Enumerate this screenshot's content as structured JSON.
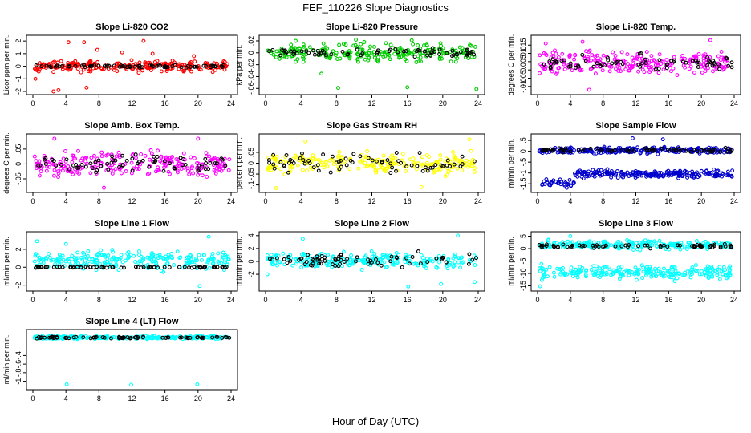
{
  "figure": {
    "title": "FEF_110226  Slope Diagnostics",
    "xlabel": "Hour of Day (UTC)"
  },
  "chart_data": [
    {
      "type": "scatter",
      "title": "Slope Li-820 CO2",
      "ylabel": "Licor ppm per min.",
      "xlim": [
        0,
        24
      ],
      "ylim": [
        -2,
        2.2
      ],
      "xticks": [
        0,
        4,
        8,
        12,
        16,
        20,
        24
      ],
      "yticks": [
        -2,
        -1,
        0,
        1,
        2
      ],
      "grid": false,
      "series": [
        {
          "color": "#ff0000",
          "center": 0,
          "spread": 0.35,
          "outliers": [
            [
              4.3,
              1.9
            ],
            [
              6.2,
              1.9
            ],
            [
              13.4,
              2.0
            ],
            [
              2.5,
              -2.0
            ],
            [
              3.1,
              -1.9
            ],
            [
              0.3,
              -1.0
            ],
            [
              6.5,
              -1.7
            ],
            [
              7.8,
              1.3
            ],
            [
              10.8,
              1.1
            ],
            [
              14.5,
              1.0
            ],
            [
              19.5,
              0.8
            ]
          ]
        },
        {
          "color": "#000000",
          "center": 0,
          "spread": 0.08,
          "outliers": []
        }
      ]
    },
    {
      "type": "scatter",
      "title": "Slope Li-820 Pressure",
      "ylabel": "kPa per min.",
      "xlim": [
        0,
        24
      ],
      "ylim": [
        -0.065,
        0.024
      ],
      "xticks": [
        0,
        4,
        8,
        12,
        16,
        20,
        24
      ],
      "yticks": [
        -0.06,
        -0.04,
        -0.02,
        0,
        0.02
      ],
      "grid": false,
      "series": [
        {
          "color": "#00cc00",
          "center": 0,
          "spread": 0.012,
          "outliers": [
            [
              8.2,
              -0.059
            ],
            [
              16.0,
              -0.058
            ],
            [
              23.8,
              -0.061
            ],
            [
              6.3,
              -0.035
            ],
            [
              10.2,
              0.022
            ],
            [
              16.5,
              0.021
            ],
            [
              3.4,
              0.02
            ]
          ]
        },
        {
          "color": "#000000",
          "center": 0,
          "spread": 0.006,
          "outliers": []
        }
      ]
    },
    {
      "type": "scatter",
      "title": "Slope Li-820 Temp.",
      "ylabel": "degrees C per min.",
      "xlim": [
        0,
        24
      ],
      "ylim": [
        -0.013,
        0.019
      ],
      "xticks": [
        0,
        4,
        8,
        12,
        16,
        20,
        24
      ],
      "yticks": [
        -0.01,
        -0.005,
        0,
        0.005,
        0.01,
        0.015
      ],
      "grid": false,
      "series": [
        {
          "color": "#ff00ff",
          "center": 0.004,
          "spread": 0.006,
          "outliers": [
            [
              6.3,
              -0.012
            ],
            [
              21.1,
              0.018
            ],
            [
              5.5,
              0.017
            ],
            [
              1.0,
              0.016
            ]
          ]
        },
        {
          "color": "#000000",
          "center": 0.004,
          "spread": 0.004,
          "outliers": []
        }
      ]
    },
    {
      "type": "scatter",
      "title": "Slope Amb. Box Temp.",
      "ylabel": "degrees C per min.",
      "xlim": [
        0,
        24
      ],
      "ylim": [
        -0.085,
        0.09
      ],
      "xticks": [
        0,
        4,
        8,
        12,
        16,
        20,
        24
      ],
      "yticks": [
        -0.05,
        0,
        0.05
      ],
      "grid": false,
      "series": [
        {
          "color": "#ff00ff",
          "center": 0,
          "spread": 0.035,
          "outliers": [
            [
              8.6,
              -0.08
            ],
            [
              2.6,
              0.085
            ],
            [
              20.0,
              0.085
            ]
          ]
        },
        {
          "color": "#000000",
          "center": 0,
          "spread": 0.025,
          "outliers": []
        }
      ]
    },
    {
      "type": "scatter",
      "title": "Slope Gas Stream RH",
      "ylabel": "percent per min.",
      "xlim": [
        0,
        24
      ],
      "ylim": [
        -0.12,
        0.12
      ],
      "xticks": [
        0,
        4,
        8,
        12,
        16,
        20,
        24
      ],
      "yticks": [
        -0.1,
        -0.05,
        0,
        0.05
      ],
      "grid": false,
      "series": [
        {
          "color": "#ffff00",
          "center": 0,
          "spread": 0.04,
          "outliers": [
            [
              1.2,
              -0.115
            ],
            [
              17.6,
              -0.11
            ],
            [
              23.0,
              0.11
            ],
            [
              4.5,
              0.1
            ]
          ]
        },
        {
          "color": "#000000",
          "center": 0,
          "spread": 0.035,
          "outliers": []
        }
      ]
    },
    {
      "type": "scatter",
      "title": "Slope Sample Flow",
      "ylabel": "ml/min per min.",
      "xlim": [
        0,
        24
      ],
      "ylim": [
        -1.75,
        0.65
      ],
      "xticks": [
        0,
        4,
        8,
        12,
        16,
        20,
        24
      ],
      "yticks": [
        -1.5,
        -1,
        -0.5,
        0,
        0.5
      ],
      "grid": false,
      "series": [
        {
          "color": "#0000cc",
          "center": 0.05,
          "spread": 0.12,
          "outliers": []
        },
        {
          "color": "#0000cc",
          "center": -1.05,
          "spread": 0.15,
          "band": [
            0.5,
            23.8
          ],
          "low_start": [
            0.5,
            4.5,
            -1.5
          ],
          "outliers": [
            [
              11.6,
              0.6
            ],
            [
              15.3,
              0.55
            ]
          ]
        },
        {
          "color": "#000000",
          "center": 0.05,
          "spread": 0.08,
          "outliers": []
        }
      ]
    },
    {
      "type": "scatter",
      "title": "Slope Line 1 Flow",
      "ylabel": "ml/min per min.",
      "xlim": [
        0,
        24
      ],
      "ylim": [
        -2.3,
        3.6
      ],
      "xticks": [
        0,
        4,
        8,
        12,
        16,
        20,
        24
      ],
      "yticks": [
        -2,
        0,
        2
      ],
      "grid": false,
      "series": [
        {
          "color": "#00ffff",
          "center": 0.8,
          "spread": 0.9,
          "outliers": [
            [
              0.5,
              2.9
            ],
            [
              21.3,
              3.4
            ],
            [
              20.2,
              -2.1
            ],
            [
              4.0,
              2.6
            ]
          ]
        },
        {
          "color": "#000000",
          "center": 0,
          "spread": 0.06,
          "outliers": []
        }
      ]
    },
    {
      "type": "scatter",
      "title": "Slope Line 2 Flow",
      "ylabel": "ml/min per min.",
      "xlim": [
        0,
        24
      ],
      "ylim": [
        -4.1,
        4.1
      ],
      "xticks": [
        0,
        4,
        8,
        12,
        16,
        20,
        24
      ],
      "yticks": [
        -2,
        0,
        2,
        4
      ],
      "grid": false,
      "series": [
        {
          "color": "#00ffff",
          "center": 0.1,
          "spread": 1.0,
          "outliers": [
            [
              4.2,
              3.5
            ],
            [
              21.7,
              4.0
            ],
            [
              16.1,
              -3.9
            ],
            [
              19.8,
              -3.5
            ],
            [
              0.2,
              -2.0
            ],
            [
              23.6,
              -3.2
            ]
          ]
        },
        {
          "color": "#000000",
          "center": 0.2,
          "spread": 0.9,
          "outliers": []
        }
      ]
    },
    {
      "type": "scatter",
      "title": "Slope Line 3 Flow",
      "ylabel": "ml/min per min.",
      "xlim": [
        0,
        24
      ],
      "ylim": [
        -15.8,
        5.5
      ],
      "xticks": [
        0,
        4,
        8,
        12,
        16,
        20,
        24
      ],
      "yticks": [
        -15,
        -10,
        -5,
        0,
        5
      ],
      "grid": false,
      "series": [
        {
          "color": "#00ffff",
          "center": 1.5,
          "spread": 1.4,
          "outliers": [
            [
              4.0,
              5.0
            ],
            [
              0.3,
              -15.2
            ]
          ]
        },
        {
          "color": "#00ffff",
          "center": -9.5,
          "spread": 2.2,
          "outliers": []
        },
        {
          "color": "#000000",
          "center": 1.0,
          "spread": 0.6,
          "outliers": []
        }
      ]
    },
    {
      "type": "scatter",
      "title": "Slope Line 4 (LT) Flow",
      "ylabel": "ml/min per min.",
      "xlim": [
        0,
        24
      ],
      "ylim": [
        -1.12,
        0.13
      ],
      "xticks": [
        0,
        4,
        8,
        12,
        16,
        20,
        24
      ],
      "yticks": [
        -1,
        -0.8,
        -0.6,
        -0.4
      ],
      "grid": false,
      "series": [
        {
          "color": "#00ffff",
          "center": 0.02,
          "spread": 0.03,
          "outliers": [
            [
              4.1,
              -1.07
            ],
            [
              11.9,
              -1.08
            ],
            [
              19.9,
              -1.07
            ]
          ]
        },
        {
          "color": "#000000",
          "center": 0.02,
          "spread": 0.02,
          "outliers": []
        }
      ]
    }
  ]
}
